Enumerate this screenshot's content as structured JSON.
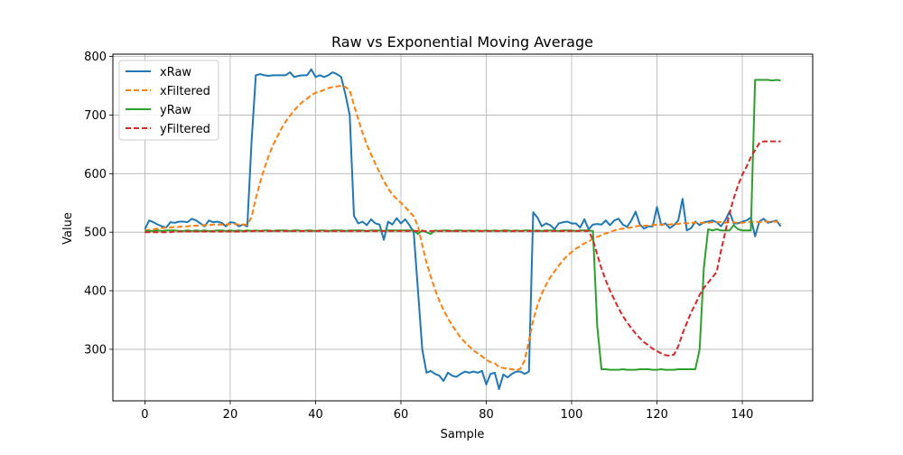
{
  "chart_data": {
    "type": "line",
    "title": "Raw vs Exponential Moving Average",
    "xlabel": "Sample",
    "ylabel": "Value",
    "xlim": [
      -7.5,
      156.5
    ],
    "ylim": [
      212,
      804
    ],
    "xticks": [
      0,
      20,
      40,
      60,
      80,
      100,
      120,
      140
    ],
    "yticks": [
      300,
      400,
      500,
      600,
      700,
      800
    ],
    "grid": true,
    "legend_position": "top-left",
    "series": [
      {
        "name": "xRaw",
        "color": "#1f77b4",
        "dashed": false,
        "values": [
          505,
          520,
          517,
          513,
          510,
          508,
          517,
          516,
          518,
          518,
          517,
          523,
          520,
          515,
          510,
          520,
          517,
          518,
          516,
          510,
          517,
          516,
          510,
          513,
          510,
          655,
          768,
          770,
          768,
          767,
          768,
          768,
          768,
          768,
          773,
          765,
          767,
          768,
          768,
          778,
          765,
          768,
          765,
          768,
          773,
          770,
          765,
          735,
          700,
          528,
          515,
          518,
          512,
          522,
          515,
          513,
          487,
          518,
          513,
          524,
          515,
          522,
          512,
          500,
          400,
          300,
          260,
          263,
          258,
          255,
          246,
          260,
          255,
          253,
          258,
          262,
          260,
          262,
          260,
          263,
          240,
          258,
          260,
          232,
          257,
          252,
          258,
          262,
          262,
          258,
          262,
          534,
          525,
          510,
          515,
          512,
          505,
          515,
          517,
          518,
          515,
          515,
          508,
          522,
          505,
          513,
          514,
          513,
          520,
          512,
          520,
          523,
          513,
          509,
          520,
          535,
          513,
          506,
          510,
          510,
          543,
          512,
          515,
          507,
          512,
          520,
          557,
          503,
          507,
          518,
          512,
          517,
          518,
          520,
          517,
          510,
          520,
          535,
          515,
          515,
          518,
          520,
          525,
          493,
          518,
          523,
          516,
          518,
          520,
          510
        ]
      },
      {
        "name": "xFiltered",
        "color": "#ff7f0e",
        "dashed": true,
        "values": [
          503,
          504,
          505,
          506,
          507,
          508,
          508,
          509,
          509,
          510,
          510,
          511,
          511,
          512,
          512,
          512,
          513,
          513,
          513,
          513,
          514,
          514,
          513,
          513,
          513,
          526,
          558,
          585,
          609,
          630,
          648,
          663,
          677,
          689,
          699,
          708,
          716,
          723,
          728,
          734,
          738,
          740,
          743,
          746,
          748,
          749,
          750,
          748,
          742,
          717,
          693,
          670,
          650,
          633,
          617,
          602,
          587,
          575,
          564,
          557,
          550,
          543,
          535,
          527,
          510,
          478,
          448,
          424,
          402,
          383,
          367,
          353,
          341,
          330,
          320,
          312,
          305,
          298,
          293,
          288,
          282,
          278,
          276,
          270,
          268,
          267,
          266,
          264,
          267,
          281,
          315,
          350,
          375,
          395,
          410,
          423,
          433,
          443,
          452,
          460,
          466,
          472,
          476,
          481,
          484,
          489,
          492,
          495,
          498,
          500,
          503,
          505,
          506,
          507,
          508,
          510,
          511,
          511,
          511,
          512,
          513,
          513,
          513,
          513,
          514,
          514,
          516,
          515,
          516,
          516,
          516,
          516,
          516,
          517,
          517,
          517,
          516,
          517,
          517,
          516,
          516,
          517,
          518,
          518,
          517,
          518,
          518,
          518,
          518,
          514
        ]
      },
      {
        "name": "yRaw",
        "color": "#2ca02c",
        "dashed": false,
        "values": [
          502,
          502,
          502,
          503,
          502,
          503,
          503,
          503,
          502,
          502,
          503,
          502,
          503,
          502,
          503,
          502,
          502,
          503,
          503,
          502,
          503,
          502,
          503,
          502,
          503,
          502,
          503,
          502,
          503,
          503,
          502,
          503,
          503,
          503,
          502,
          503,
          503,
          502,
          503,
          503,
          502,
          503,
          503,
          502,
          503,
          503,
          503,
          502,
          503,
          503,
          503,
          503,
          502,
          503,
          503,
          503,
          502,
          503,
          503,
          503,
          503,
          503,
          503,
          503,
          497,
          503,
          500,
          497,
          503,
          502,
          503,
          503,
          502,
          503,
          503,
          502,
          503,
          502,
          503,
          502,
          503,
          502,
          503,
          502,
          503,
          503,
          502,
          503,
          502,
          503,
          503,
          502,
          503,
          502,
          503,
          503,
          503,
          502,
          503,
          503,
          503,
          502,
          503,
          503,
          503,
          502,
          340,
          266,
          266,
          265,
          265,
          265,
          266,
          265,
          265,
          265,
          266,
          266,
          266,
          265,
          265,
          266,
          265,
          265,
          265,
          266,
          266,
          266,
          266,
          266,
          300,
          440,
          505,
          503,
          505,
          503,
          503,
          503,
          512,
          505,
          503,
          503,
          503,
          760,
          760,
          760,
          760,
          759,
          760,
          759
        ]
      },
      {
        "name": "yFiltered",
        "color": "#d62728",
        "dashed": true,
        "values": [
          500,
          500,
          500,
          500,
          500,
          500,
          500,
          501,
          501,
          501,
          501,
          501,
          501,
          501,
          501,
          501,
          501,
          501,
          501,
          501,
          501,
          501,
          501,
          501,
          502,
          502,
          502,
          502,
          502,
          502,
          502,
          502,
          502,
          502,
          502,
          502,
          502,
          502,
          502,
          502,
          502,
          502,
          502,
          502,
          502,
          502,
          502,
          502,
          502,
          502,
          502,
          502,
          502,
          502,
          502,
          502,
          502,
          502,
          502,
          502,
          502,
          502,
          502,
          502,
          502,
          502,
          502,
          502,
          502,
          502,
          502,
          502,
          502,
          502,
          502,
          502,
          502,
          502,
          502,
          502,
          502,
          502,
          502,
          502,
          502,
          502,
          502,
          502,
          502,
          502,
          502,
          502,
          502,
          502,
          502,
          502,
          502,
          502,
          502,
          502,
          502,
          502,
          502,
          502,
          502,
          487,
          462,
          438,
          418,
          400,
          385,
          370,
          357,
          346,
          336,
          327,
          319,
          312,
          307,
          301,
          297,
          293,
          290,
          289,
          291,
          305,
          327,
          345,
          363,
          377,
          393,
          405,
          414,
          423,
          432,
          468,
          500,
          532,
          558,
          580,
          598,
          612,
          628,
          640,
          652,
          655,
          655,
          655,
          655,
          655
        ]
      }
    ]
  }
}
